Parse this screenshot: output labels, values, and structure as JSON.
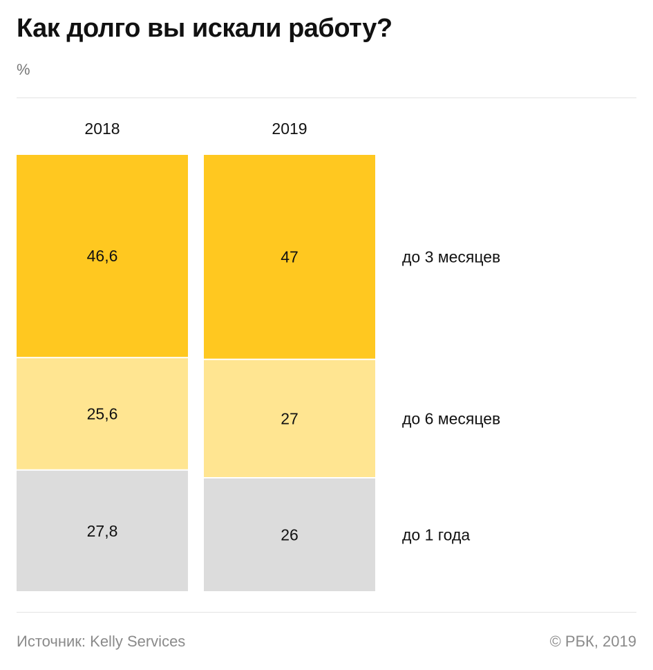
{
  "header": {
    "title": "Как долго вы искали работу?",
    "unit": "%"
  },
  "footer": {
    "source": "Источник: Kelly Services",
    "copyright": "© РБК, 2019"
  },
  "colors": {
    "segment_1": "#FFC820",
    "segment_2": "#FFE591",
    "segment_3": "#DCDCDC",
    "text": "#111111",
    "muted": "#8a8a8a"
  },
  "chart_data": {
    "type": "bar",
    "stacked": true,
    "orientation": "vertical",
    "categories": [
      "2018",
      "2019"
    ],
    "series": [
      {
        "name": "до 3 месяцев",
        "values": [
          46.6,
          47
        ],
        "labels": [
          "46,6",
          "47"
        ]
      },
      {
        "name": "до 6 месяцев",
        "values": [
          25.6,
          27
        ],
        "labels": [
          "25,6",
          "27"
        ]
      },
      {
        "name": "до 1 года",
        "values": [
          27.8,
          26
        ],
        "labels": [
          "27,8",
          "26"
        ]
      }
    ],
    "title": "Как долго вы искали работу?",
    "ylabel": "%",
    "ylim": [
      0,
      100
    ],
    "legend": "right",
    "grid": false
  }
}
